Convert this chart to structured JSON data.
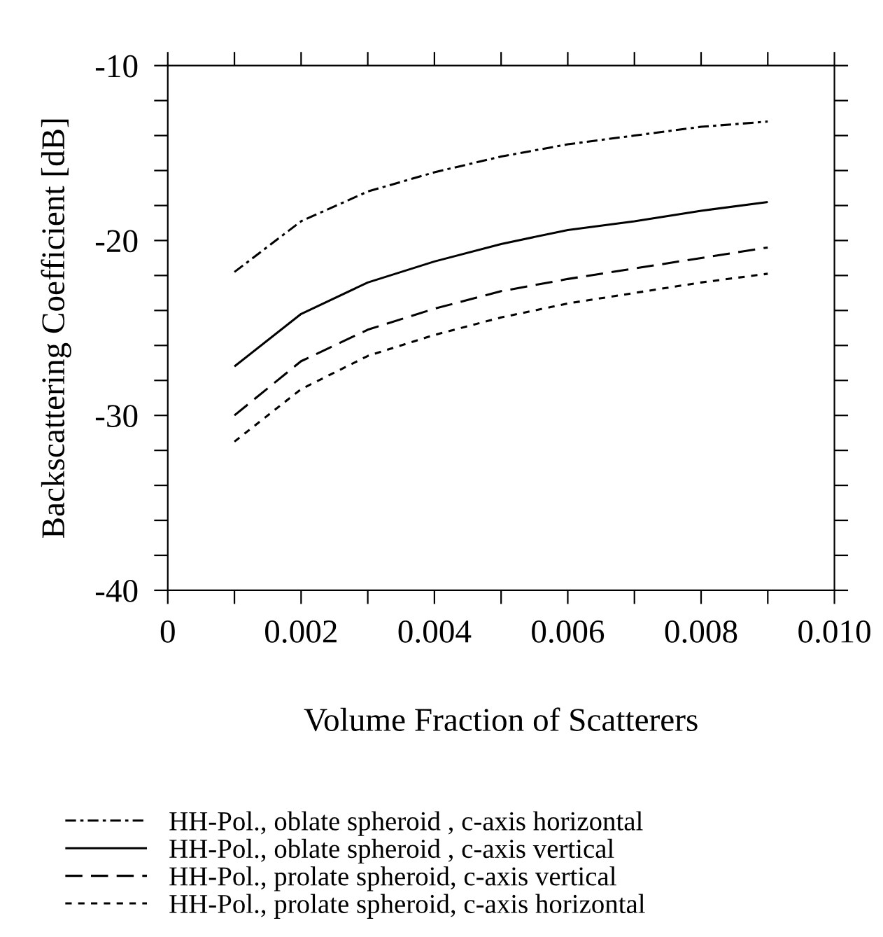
{
  "chart_data": {
    "type": "line",
    "xlabel": "Volume Fraction of Scatterers",
    "ylabel": "Backscattering Coefficient [dB]",
    "x": [
      0.001,
      0.002,
      0.003,
      0.004,
      0.005,
      0.006,
      0.007,
      0.008,
      0.009
    ],
    "series": [
      {
        "name": "HH-Pol., oblate spheroid , c-axis horizontal",
        "color": "#000000",
        "line_style": "dashdot",
        "values": [
          -21.8,
          -18.9,
          -17.2,
          -16.1,
          -15.2,
          -14.5,
          -14.0,
          -13.5,
          -13.2
        ]
      },
      {
        "name": "HH-Pol., oblate spheroid , c-axis vertical",
        "color": "#000000",
        "line_style": "solid",
        "values": [
          -27.2,
          -24.2,
          -22.4,
          -21.2,
          -20.2,
          -19.4,
          -18.9,
          -18.3,
          -17.8
        ]
      },
      {
        "name": "HH-Pol., prolate spheroid, c-axis vertical",
        "color": "#000000",
        "line_style": "dashed",
        "values": [
          -30.0,
          -26.9,
          -25.1,
          -23.9,
          -22.9,
          -22.2,
          -21.6,
          -21.0,
          -20.4
        ]
      },
      {
        "name": "HH-Pol., prolate spheroid, c-axis horizontal",
        "color": "#000000",
        "line_style": "dotted",
        "values": [
          -31.5,
          -28.5,
          -26.6,
          -25.4,
          -24.4,
          -23.6,
          -23.0,
          -22.4,
          -21.9
        ]
      }
    ],
    "xlim": [
      0,
      0.01
    ],
    "ylim": [
      -40,
      -10
    ],
    "xticks": [
      {
        "value": 0,
        "label": "0"
      },
      {
        "value": 0.001,
        "label": null
      },
      {
        "value": 0.002,
        "label": "0.002"
      },
      {
        "value": 0.003,
        "label": null
      },
      {
        "value": 0.004,
        "label": "0.004"
      },
      {
        "value": 0.005,
        "label": null
      },
      {
        "value": 0.006,
        "label": "0.006"
      },
      {
        "value": 0.007,
        "label": null
      },
      {
        "value": 0.008,
        "label": "0.008"
      },
      {
        "value": 0.009,
        "label": null
      },
      {
        "value": 0.01,
        "label": "0.010"
      }
    ],
    "yticks": [
      -40,
      {
        "value": -38,
        "label": null
      },
      {
        "value": -36,
        "label": null
      },
      {
        "value": -34,
        "label": null
      },
      {
        "value": -32,
        "label": null
      },
      -30,
      {
        "value": -28,
        "label": null
      },
      {
        "value": -26,
        "label": null
      },
      {
        "value": -24,
        "label": null
      },
      {
        "value": -22,
        "label": null
      },
      -20,
      {
        "value": -18,
        "label": null
      },
      {
        "value": -16,
        "label": null
      },
      {
        "value": -14,
        "label": null
      },
      {
        "value": -12,
        "label": null
      },
      -10
    ],
    "grid": false,
    "legend": "bottom",
    "marker": "none"
  }
}
